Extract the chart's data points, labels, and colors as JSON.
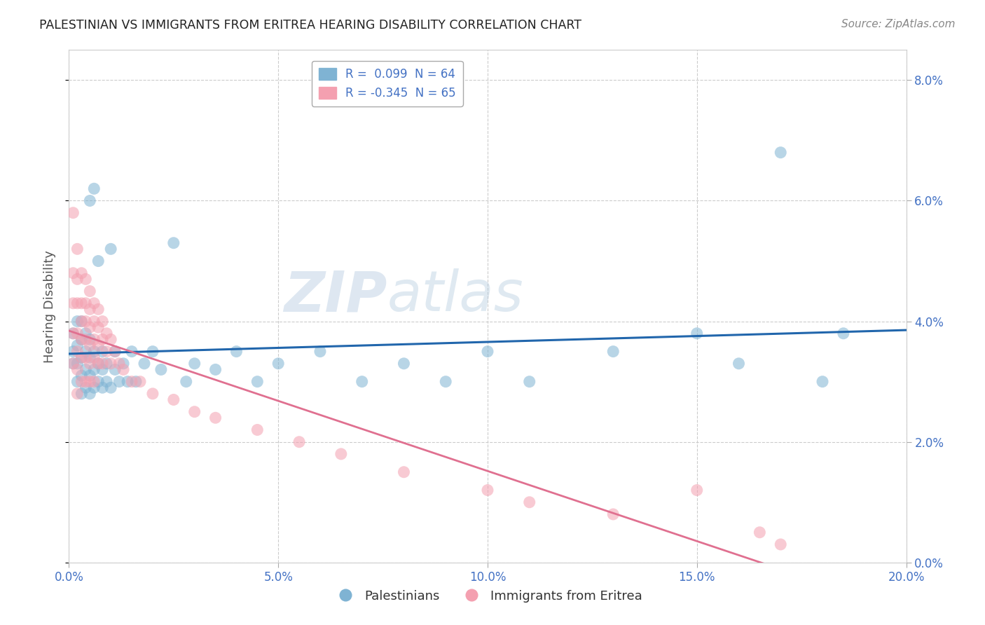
{
  "title": "PALESTINIAN VS IMMIGRANTS FROM ERITREA HEARING DISABILITY CORRELATION CHART",
  "source": "Source: ZipAtlas.com",
  "xlim": [
    0.0,
    0.2
  ],
  "ylim": [
    0.0,
    0.085
  ],
  "legend1_label": "R =  0.099  N = 64",
  "legend2_label": "R = -0.345  N = 65",
  "legend_group1": "Palestinians",
  "legend_group2": "Immigrants from Eritrea",
  "blue_color": "#7fb3d3",
  "pink_color": "#f4a0b0",
  "blue_line_color": "#2166ac",
  "pink_line_color": "#e07090",
  "watermark_zip": "ZIP",
  "watermark_atlas": "atlas",
  "title_color": "#333333",
  "axis_label_color": "#4472c4",
  "dot_alpha": 0.55,
  "dot_size": 150,
  "blue_scatter_x": [
    0.001,
    0.001,
    0.001,
    0.002,
    0.002,
    0.002,
    0.002,
    0.003,
    0.003,
    0.003,
    0.003,
    0.003,
    0.004,
    0.004,
    0.004,
    0.004,
    0.005,
    0.005,
    0.005,
    0.005,
    0.005,
    0.006,
    0.006,
    0.006,
    0.006,
    0.007,
    0.007,
    0.007,
    0.008,
    0.008,
    0.008,
    0.009,
    0.009,
    0.01,
    0.01,
    0.011,
    0.011,
    0.012,
    0.013,
    0.014,
    0.015,
    0.016,
    0.018,
    0.02,
    0.022,
    0.025,
    0.028,
    0.03,
    0.035,
    0.04,
    0.045,
    0.05,
    0.06,
    0.07,
    0.08,
    0.09,
    0.1,
    0.11,
    0.13,
    0.15,
    0.16,
    0.17,
    0.18,
    0.185
  ],
  "blue_scatter_y": [
    0.033,
    0.035,
    0.038,
    0.03,
    0.033,
    0.036,
    0.04,
    0.028,
    0.031,
    0.034,
    0.037,
    0.04,
    0.029,
    0.032,
    0.035,
    0.038,
    0.028,
    0.031,
    0.034,
    0.037,
    0.06,
    0.029,
    0.032,
    0.035,
    0.062,
    0.03,
    0.033,
    0.05,
    0.029,
    0.032,
    0.035,
    0.03,
    0.033,
    0.029,
    0.052,
    0.032,
    0.035,
    0.03,
    0.033,
    0.03,
    0.035,
    0.03,
    0.033,
    0.035,
    0.032,
    0.053,
    0.03,
    0.033,
    0.032,
    0.035,
    0.03,
    0.033,
    0.035,
    0.03,
    0.033,
    0.03,
    0.035,
    0.03,
    0.035,
    0.038,
    0.033,
    0.068,
    0.03,
    0.038
  ],
  "pink_scatter_x": [
    0.001,
    0.001,
    0.001,
    0.001,
    0.001,
    0.002,
    0.002,
    0.002,
    0.002,
    0.002,
    0.002,
    0.002,
    0.003,
    0.003,
    0.003,
    0.003,
    0.003,
    0.003,
    0.004,
    0.004,
    0.004,
    0.004,
    0.004,
    0.004,
    0.005,
    0.005,
    0.005,
    0.005,
    0.005,
    0.005,
    0.006,
    0.006,
    0.006,
    0.006,
    0.006,
    0.007,
    0.007,
    0.007,
    0.007,
    0.008,
    0.008,
    0.008,
    0.009,
    0.009,
    0.01,
    0.01,
    0.011,
    0.012,
    0.013,
    0.015,
    0.017,
    0.02,
    0.025,
    0.03,
    0.035,
    0.045,
    0.055,
    0.065,
    0.08,
    0.1,
    0.11,
    0.13,
    0.15,
    0.165,
    0.17
  ],
  "pink_scatter_y": [
    0.058,
    0.048,
    0.043,
    0.038,
    0.033,
    0.052,
    0.047,
    0.043,
    0.038,
    0.035,
    0.032,
    0.028,
    0.048,
    0.043,
    0.04,
    0.037,
    0.034,
    0.03,
    0.047,
    0.043,
    0.04,
    0.037,
    0.034,
    0.03,
    0.045,
    0.042,
    0.039,
    0.036,
    0.033,
    0.03,
    0.043,
    0.04,
    0.037,
    0.034,
    0.03,
    0.042,
    0.039,
    0.036,
    0.033,
    0.04,
    0.037,
    0.033,
    0.038,
    0.035,
    0.037,
    0.033,
    0.035,
    0.033,
    0.032,
    0.03,
    0.03,
    0.028,
    0.027,
    0.025,
    0.024,
    0.022,
    0.02,
    0.018,
    0.015,
    0.012,
    0.01,
    0.008,
    0.012,
    0.005,
    0.003
  ]
}
